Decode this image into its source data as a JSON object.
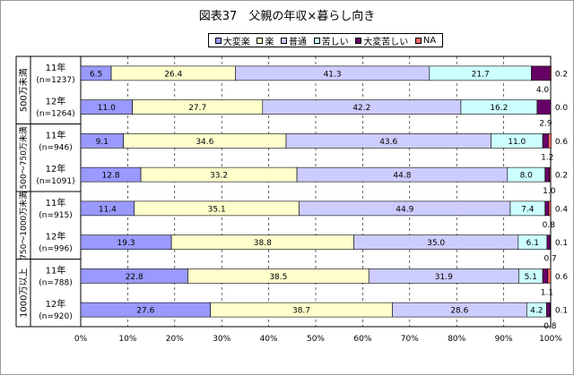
{
  "title": "図表37　父親の年収×暮らし向き",
  "chart_data": {
    "type": "bar",
    "orientation": "horizontal",
    "stacked": "percent",
    "xlim": [
      0,
      100
    ],
    "xticks": [
      "0%",
      "10%",
      "20%",
      "30%",
      "40%",
      "50%",
      "60%",
      "70%",
      "80%",
      "90%",
      "100%"
    ],
    "grid": true,
    "legend_position": "top",
    "groups": [
      "500万未満",
      "500～750万未満",
      "750～1000万未満",
      "1000万以上"
    ],
    "categories": [
      "11年 (n=1237)",
      "12年 (n=1264)",
      "11年 (n=946)",
      "12年 (n=1091)",
      "11年 (n=915)",
      "12年 (n=996)",
      "11年 (n=788)",
      "12年 (n=920)"
    ],
    "series": [
      {
        "name": "大変楽",
        "color": "#9999ff",
        "values": [
          6.5,
          11.0,
          9.1,
          12.8,
          11.4,
          19.3,
          22.8,
          27.6
        ]
      },
      {
        "name": "楽",
        "color": "#ffffcc",
        "values": [
          26.4,
          27.7,
          34.6,
          33.2,
          35.1,
          38.8,
          38.5,
          38.7
        ]
      },
      {
        "name": "普通",
        "color": "#ccccff",
        "values": [
          41.3,
          42.2,
          43.6,
          44.8,
          44.9,
          35.0,
          31.9,
          28.6
        ]
      },
      {
        "name": "苦しい",
        "color": "#ccffff",
        "values": [
          21.7,
          16.2,
          11.0,
          8.0,
          7.4,
          6.1,
          5.1,
          4.2
        ]
      },
      {
        "name": "大変苦しい",
        "color": "#660066",
        "values": [
          4.0,
          2.9,
          1.2,
          1.0,
          0.8,
          0.7,
          1.1,
          0.8
        ]
      },
      {
        "name": "NA",
        "color": "#ff6666",
        "values": [
          0.2,
          0.0,
          0.6,
          0.2,
          0.4,
          0.1,
          0.6,
          0.1
        ]
      }
    ]
  }
}
